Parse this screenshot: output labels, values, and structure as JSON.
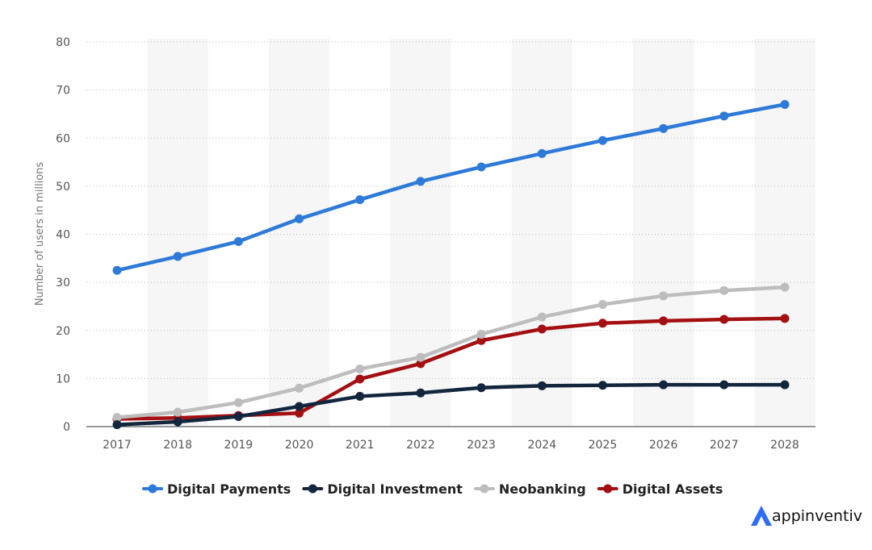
{
  "chart_data": {
    "type": "line",
    "title": "",
    "xlabel": "",
    "ylabel": "Number of users in millions",
    "ylim": [
      0,
      80
    ],
    "yticks": [
      0,
      10,
      20,
      30,
      40,
      50,
      60,
      70,
      80
    ],
    "grid": true,
    "legend_position": "bottom-center",
    "categories": [
      "2017",
      "2018",
      "2019",
      "2020",
      "2021",
      "2022",
      "2023",
      "2024",
      "2025",
      "2026",
      "2027",
      "2028"
    ],
    "series": [
      {
        "name": "Digital Payments",
        "color": "#2e7ad9",
        "values": [
          32.5,
          35.4,
          38.5,
          43.2,
          47.2,
          51.0,
          54.0,
          56.8,
          59.5,
          62.0,
          64.6,
          67.0
        ]
      },
      {
        "name": "Digital Investment",
        "color": "#13263d",
        "values": [
          0.4,
          1.0,
          2.1,
          4.2,
          6.3,
          7.0,
          8.1,
          8.5,
          8.6,
          8.7,
          8.7,
          8.7
        ]
      },
      {
        "name": "Neobanking",
        "color": "#bdbdbd",
        "values": [
          1.9,
          3.0,
          5.0,
          8.0,
          12.0,
          14.4,
          19.2,
          22.8,
          25.4,
          27.2,
          28.3,
          29.0
        ]
      },
      {
        "name": "Digital Assets",
        "color": "#a40f12",
        "values": [
          1.6,
          1.8,
          2.3,
          2.8,
          9.9,
          13.1,
          17.9,
          20.3,
          21.5,
          22.0,
          22.3,
          22.5
        ]
      }
    ]
  },
  "brand": {
    "name": "appinventiv",
    "logo_icon": "appinventiv-logo-icon",
    "logo_color": "#2f6df6"
  }
}
